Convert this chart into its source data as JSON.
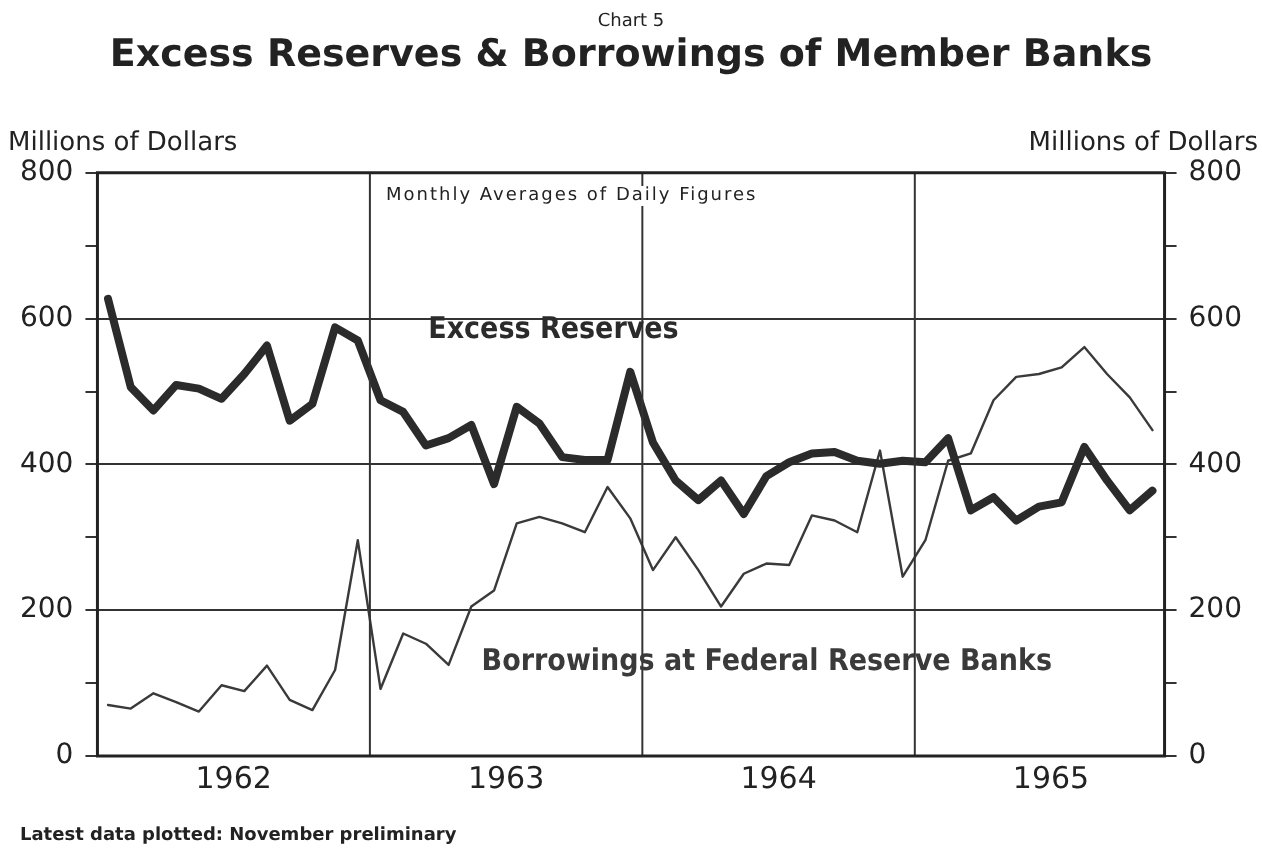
{
  "chart_data": {
    "type": "line",
    "title": "Excess Reserves & Borrowings of Member Banks",
    "subtitle": "Chart 5",
    "ylabel": "Millions of Dollars",
    "y2label": "Millions of Dollars",
    "annotations": [
      "Monthly Averages of Daily Figures",
      "Latest data plotted: November preliminary"
    ],
    "x": [
      "1962-01-15",
      "1962-02-15",
      "1962-03-15",
      "1962-04-15",
      "1962-05-15",
      "1962-06-15",
      "1962-07-15",
      "1962-08-15",
      "1962-09-15",
      "1962-10-15",
      "1962-11-15",
      "1962-12-15",
      "1963-01-15",
      "1963-02-15",
      "1963-03-15",
      "1963-04-15",
      "1963-05-15",
      "1963-06-15",
      "1963-07-15",
      "1963-08-15",
      "1963-09-15",
      "1963-10-15",
      "1963-11-15",
      "1963-12-15",
      "1964-01-15",
      "1964-02-15",
      "1964-03-15",
      "1964-04-15",
      "1964-05-15",
      "1964-06-15",
      "1964-07-15",
      "1964-08-15",
      "1964-09-15",
      "1964-10-15",
      "1964-11-15",
      "1964-12-15",
      "1965-01-15",
      "1965-02-15",
      "1965-03-15",
      "1965-04-15",
      "1965-05-15",
      "1965-06-15",
      "1965-07-15",
      "1965-08-15",
      "1965-09-15",
      "1965-10-15",
      "1965-11-15"
    ],
    "series": [
      {
        "name": "Excess Reserves",
        "color": "#2b2b2b",
        "values": [
          627,
          506,
          474,
          509,
          504,
          490,
          524,
          563,
          460,
          483,
          588,
          570,
          488,
          472,
          426,
          436,
          454,
          373,
          479,
          456,
          410,
          406,
          406,
          527,
          430,
          378,
          351,
          378,
          332,
          384,
          403,
          415,
          417,
          405,
          401,
          405,
          403,
          436,
          337,
          355,
          323,
          342,
          348,
          424,
          378,
          337,
          364
        ]
      },
      {
        "name": "Borrowings at Federal Reserve Banks",
        "color": "#3a3a3a",
        "values": [
          70,
          65,
          86,
          74,
          61,
          97,
          89,
          124,
          77,
          63,
          118,
          296,
          92,
          168,
          154,
          125,
          205,
          227,
          319,
          328,
          319,
          307,
          369,
          326,
          255,
          300,
          255,
          205,
          250,
          264,
          262,
          330,
          323,
          307,
          419,
          246,
          296,
          405,
          415,
          488,
          520,
          524,
          533,
          561,
          524,
          492,
          447
        ]
      }
    ],
    "xlim": [
      "1962-01-01",
      "1965-12-01"
    ],
    "xticks": [
      {
        "value": "1962-07-01",
        "label": "1962"
      },
      {
        "value": "1963-07-01",
        "label": "1963"
      },
      {
        "value": "1964-07-01",
        "label": "1964"
      },
      {
        "value": "1965-07-01",
        "label": "1965"
      }
    ],
    "ylim": [
      0,
      800
    ],
    "yticks": [
      0,
      {
        "value": 100,
        "label": null
      },
      200,
      {
        "value": 300,
        "label": null
      },
      400,
      {
        "value": 500,
        "label": null
      },
      600,
      {
        "value": 700,
        "label": null
      },
      800
    ],
    "y2lim": [
      0,
      800
    ],
    "y2ticks": [
      0,
      {
        "value": 100,
        "label": null
      },
      200,
      {
        "value": 300,
        "label": null
      },
      400,
      {
        "value": 500,
        "label": null
      },
      600,
      {
        "value": 700,
        "label": null
      },
      800
    ],
    "ref_lines": [
      {
        "axis": "x",
        "value": "1963-01-01",
        "label": null
      },
      {
        "axis": "x",
        "value": "1964-01-01",
        "label": null
      },
      {
        "axis": "x",
        "value": "1965-01-01",
        "label": null
      }
    ],
    "grid": "y",
    "legend": false,
    "marker": "none",
    "line_style": "solid"
  }
}
